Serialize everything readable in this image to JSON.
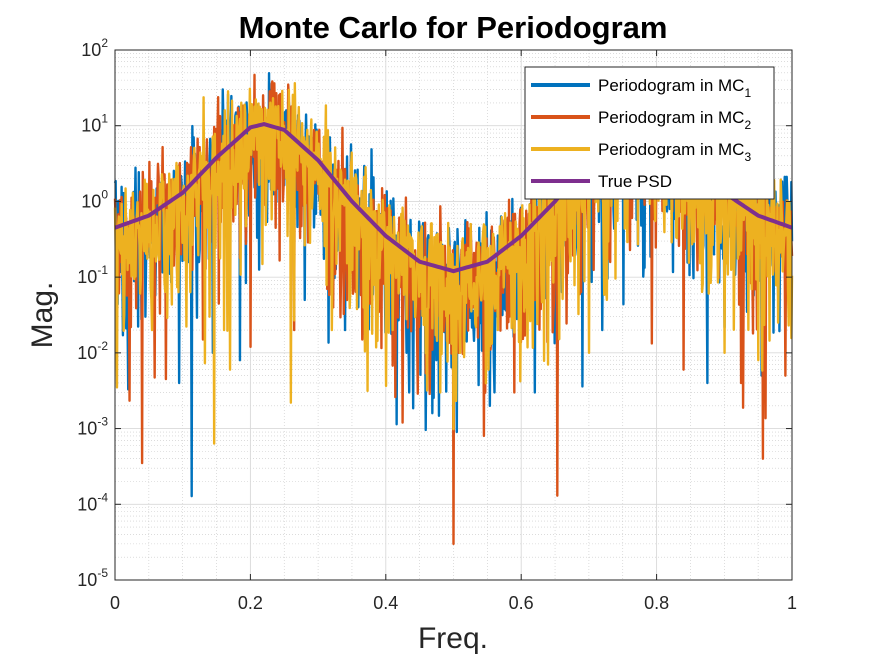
{
  "chart_data": {
    "type": "line",
    "title": "Monte Carlo for Periodogram",
    "xlabel": "Freq.",
    "ylabel": "Mag.",
    "xlim": [
      0,
      1
    ],
    "ylim": [
      1e-05,
      100
    ],
    "yscale": "log",
    "grid": true,
    "minor_grid": true,
    "legend_position": "top-right",
    "x_ticks": [
      {
        "value": 0,
        "label": "0"
      },
      {
        "value": 0.2,
        "label": "0.2"
      },
      {
        "value": 0.4,
        "label": "0.4"
      },
      {
        "value": 0.6,
        "label": "0.6"
      },
      {
        "value": 0.8,
        "label": "0.8"
      },
      {
        "value": 1,
        "label": "1"
      }
    ],
    "y_ticks": [
      {
        "value": 100,
        "base": "10",
        "exp": "2"
      },
      {
        "value": 10,
        "base": "10",
        "exp": "1"
      },
      {
        "value": 1,
        "base": "10",
        "exp": "0"
      },
      {
        "value": 0.1,
        "base": "10",
        "exp": "-1"
      },
      {
        "value": 0.01,
        "base": "10",
        "exp": "-2"
      },
      {
        "value": 0.001,
        "base": "10",
        "exp": "-3"
      },
      {
        "value": 0.0001,
        "base": "10",
        "exp": "-4"
      },
      {
        "value": 1e-05,
        "base": "10",
        "exp": "-5"
      }
    ],
    "true_psd": {
      "label": "True PSD",
      "color": "#7E2F8E",
      "x": [
        0,
        0.05,
        0.1,
        0.15,
        0.2,
        0.22,
        0.25,
        0.3,
        0.35,
        0.4,
        0.45,
        0.5,
        0.55,
        0.6,
        0.65,
        0.7,
        0.75,
        0.78,
        0.8,
        0.85,
        0.9,
        0.95,
        1
      ],
      "y": [
        0.45,
        0.65,
        1.3,
        3.8,
        9.5,
        10.5,
        8.8,
        3.5,
        1.0,
        0.35,
        0.16,
        0.12,
        0.16,
        0.35,
        1.0,
        3.5,
        8.8,
        10.5,
        9.5,
        3.8,
        1.3,
        0.65,
        0.45
      ]
    },
    "series": [
      {
        "label_prefix": "Periodogram in MC",
        "label_sub": "1",
        "color": "#0072BD",
        "dips": [
          {
            "x": 0.045,
            "y": 0.03
          },
          {
            "x": 0.095,
            "y": 0.004
          },
          {
            "x": 0.145,
            "y": 0.01
          },
          {
            "x": 0.185,
            "y": 0.008
          },
          {
            "x": 0.28,
            "y": 0.05
          },
          {
            "x": 0.34,
            "y": 0.02
          },
          {
            "x": 0.435,
            "y": 0.003
          },
          {
            "x": 0.475,
            "y": 0.008
          },
          {
            "x": 0.505,
            "y": 0.0009
          },
          {
            "x": 0.545,
            "y": 0.004
          },
          {
            "x": 0.62,
            "y": 0.003
          },
          {
            "x": 0.72,
            "y": 0.02
          },
          {
            "x": 0.875,
            "y": 0.004
          },
          {
            "x": 0.955,
            "y": 0.005
          },
          {
            "x": 0.995,
            "y": 0.05
          }
        ]
      },
      {
        "label_prefix": "Periodogram in MC",
        "label_sub": "2",
        "color": "#D95319",
        "dips": [
          {
            "x": 0.04,
            "y": 0.00035
          },
          {
            "x": 0.075,
            "y": 0.0045
          },
          {
            "x": 0.13,
            "y": 0.015
          },
          {
            "x": 0.2,
            "y": 0.012
          },
          {
            "x": 0.265,
            "y": 0.02
          },
          {
            "x": 0.365,
            "y": 0.015
          },
          {
            "x": 0.425,
            "y": 0.0012
          },
          {
            "x": 0.5,
            "y": 3e-05
          },
          {
            "x": 0.545,
            "y": 0.0008
          },
          {
            "x": 0.59,
            "y": 0.003
          },
          {
            "x": 0.653,
            "y": 0.00013
          },
          {
            "x": 0.84,
            "y": 0.006
          },
          {
            "x": 0.925,
            "y": 0.004
          },
          {
            "x": 0.957,
            "y": 0.0004
          },
          {
            "x": 0.99,
            "y": 0.005
          }
        ]
      },
      {
        "label_prefix": "Periodogram in MC",
        "label_sub": "3",
        "color": "#EDB120",
        "dips": [
          {
            "x": 0.003,
            "y": 0.0035
          },
          {
            "x": 0.055,
            "y": 0.02
          },
          {
            "x": 0.14,
            "y": 0.03
          },
          {
            "x": 0.17,
            "y": 0.006
          },
          {
            "x": 0.26,
            "y": 0.0022
          },
          {
            "x": 0.32,
            "y": 0.02
          },
          {
            "x": 0.41,
            "y": 0.02
          },
          {
            "x": 0.48,
            "y": 0.003
          },
          {
            "x": 0.51,
            "y": 0.01
          },
          {
            "x": 0.565,
            "y": 0.02
          },
          {
            "x": 0.64,
            "y": 0.007
          },
          {
            "x": 0.7,
            "y": 0.01
          },
          {
            "x": 0.9,
            "y": 0.01
          },
          {
            "x": 0.95,
            "y": 0.008
          }
        ]
      }
    ]
  }
}
